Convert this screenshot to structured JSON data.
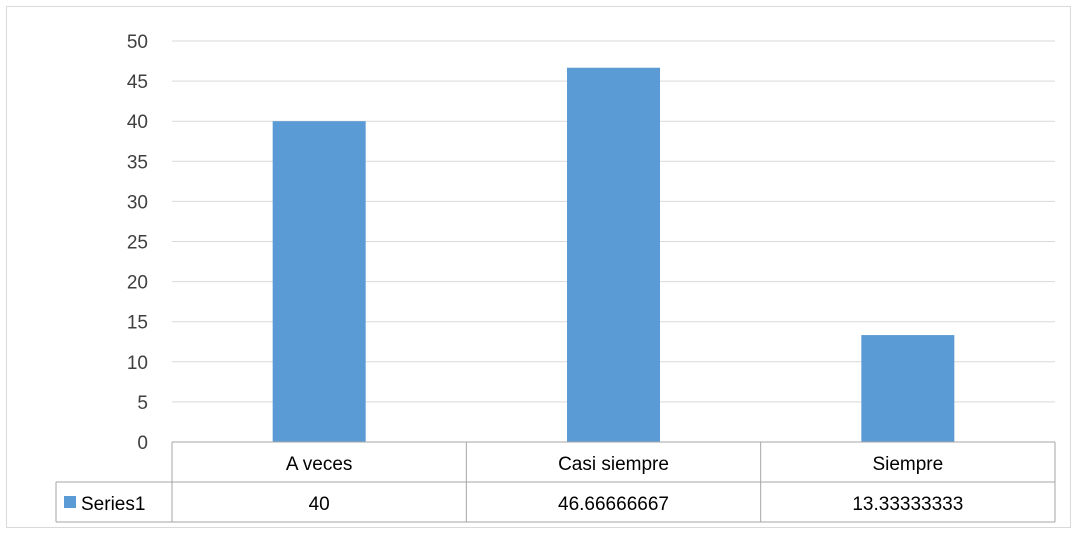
{
  "chart_data": {
    "type": "bar",
    "title": "",
    "xlabel": "",
    "ylabel": "",
    "categories": [
      "A veces",
      "Casi siempre",
      "Siempre"
    ],
    "series": [
      {
        "name": "Series1",
        "values": [
          40,
          46.66666667,
          13.33333333
        ],
        "value_labels": [
          "40",
          "46.66666667",
          "13.33333333"
        ],
        "color": "#5b9bd5"
      }
    ],
    "ylim": [
      0,
      50
    ],
    "y_ticks": [
      "0",
      "5",
      "10",
      "15",
      "20",
      "25",
      "30",
      "35",
      "40",
      "45",
      "50"
    ],
    "grid": true,
    "legend": "data-table",
    "data_table": true
  }
}
